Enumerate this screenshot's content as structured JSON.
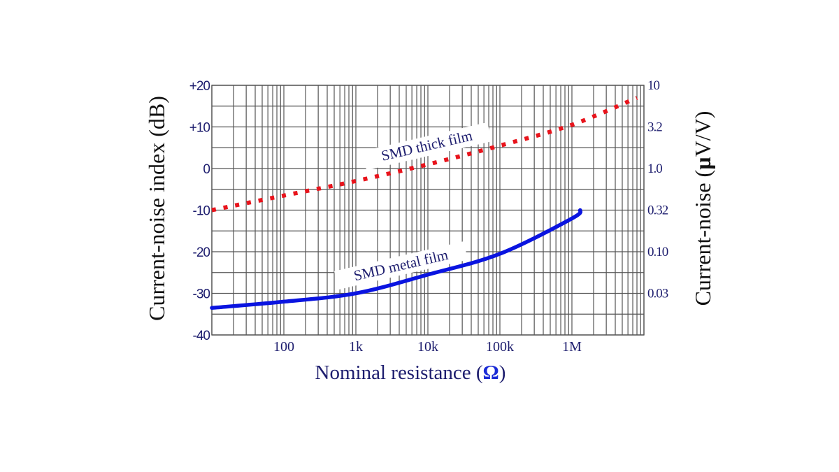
{
  "chart_data": {
    "type": "line",
    "title": "",
    "xlabel": "Nominal resistance (Ω)",
    "xlabel_text": "Nominal resistance (",
    "xlabel_symbol": "Ω",
    "xlabel_close": ")",
    "ylabel": "Current-noise index (dB)",
    "ylabel_right": "Current-noise (µV/V)",
    "ylabel_right_text": "Current-noise (",
    "ylabel_right_symbol": "µ",
    "ylabel_right_close": "V/V)",
    "x_scale": "log",
    "xlim": [
      10,
      10000000
    ],
    "ylim": [
      -40,
      20
    ],
    "x_tick_labels": [
      "100",
      "1k",
      "10k",
      "100k",
      "1M"
    ],
    "x_tick_values": [
      100,
      1000,
      10000,
      100000,
      1000000
    ],
    "y_tick_labels": [
      "+20",
      "+10",
      "0",
      "-10",
      "-20",
      "-30",
      "-40"
    ],
    "y_tick_values": [
      20,
      10,
      0,
      -10,
      -20,
      -30,
      -40
    ],
    "y_right_tick_labels": [
      "10",
      "3.2",
      "1.0",
      "0.32",
      "0.10",
      "0.03"
    ],
    "y_right_tick_dB": [
      20,
      10,
      0,
      -10,
      -20,
      -30
    ],
    "grid": true,
    "legend": "inline labels",
    "series": [
      {
        "name": "SMD thick film",
        "color": "#e8141c",
        "style": "dotted",
        "x": [
          10,
          100,
          1000,
          10000,
          100000,
          1000000,
          8000000
        ],
        "values": [
          -10,
          -6.5,
          -3,
          1,
          5.5,
          10.5,
          17
        ]
      },
      {
        "name": "SMD metal film",
        "color": "#0a14e0",
        "style": "solid",
        "x": [
          10,
          100,
          1000,
          10000,
          100000,
          1000000,
          1300000
        ],
        "values": [
          -33.5,
          -32,
          -30,
          -25.5,
          -20.5,
          -12,
          -10
        ]
      }
    ]
  }
}
